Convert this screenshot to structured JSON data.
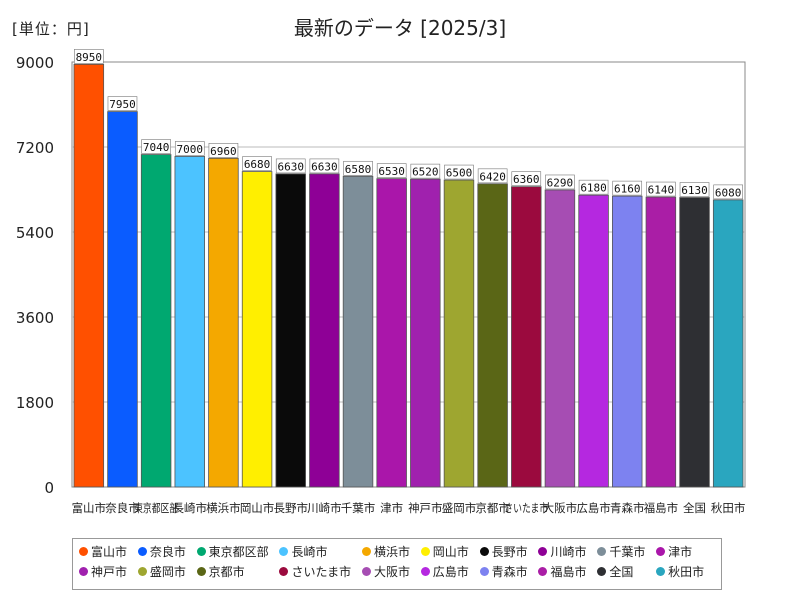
{
  "unit_label": "[単位：円]",
  "chart_data": {
    "type": "bar",
    "title": "最新のデータ [2025/3]",
    "xlabel": "",
    "ylabel": "",
    "ylim": [
      0,
      9000
    ],
    "yticks": [
      "0",
      "1800",
      "3600",
      "5400",
      "7200",
      "9000"
    ],
    "grid": true,
    "legend_position": "bottom",
    "categories": [
      "富山市",
      "奈良市",
      "東京都区部",
      "長崎市",
      "横浜市",
      "岡山市",
      "長野市",
      "川崎市",
      "千葉市",
      "津市",
      "神戸市",
      "盛岡市",
      "京都市",
      "さいたま市",
      "大阪市",
      "広島市",
      "青森市",
      "福島市",
      "全国",
      "秋田市"
    ],
    "values": [
      8950,
      7950,
      7040,
      7000,
      6960,
      6680,
      6630,
      6630,
      6580,
      6530,
      6520,
      6500,
      6420,
      6360,
      6290,
      6180,
      6160,
      6140,
      6130,
      6080
    ],
    "value_labels": [
      "8950",
      "7950",
      "7040",
      "7000",
      "6960",
      "6680",
      "6630",
      "6630",
      "6580",
      "6530",
      "6520",
      "6500",
      "6420",
      "6360",
      "6290",
      "6180",
      "6160",
      "6140",
      "6130",
      "6080"
    ],
    "colors": [
      "#ff5000",
      "#0a5cff",
      "#00a870",
      "#4cc3ff",
      "#f4a800",
      "#ffef00",
      "#0a0a0a",
      "#8e0096",
      "#7d8e99",
      "#aa16aa",
      "#a021ae",
      "#9ea630",
      "#5a6616",
      "#9b0a3e",
      "#a64db3",
      "#b528e0",
      "#7d82f0",
      "#aa1ea6",
      "#2e2f33",
      "#2aa6bf"
    ]
  }
}
